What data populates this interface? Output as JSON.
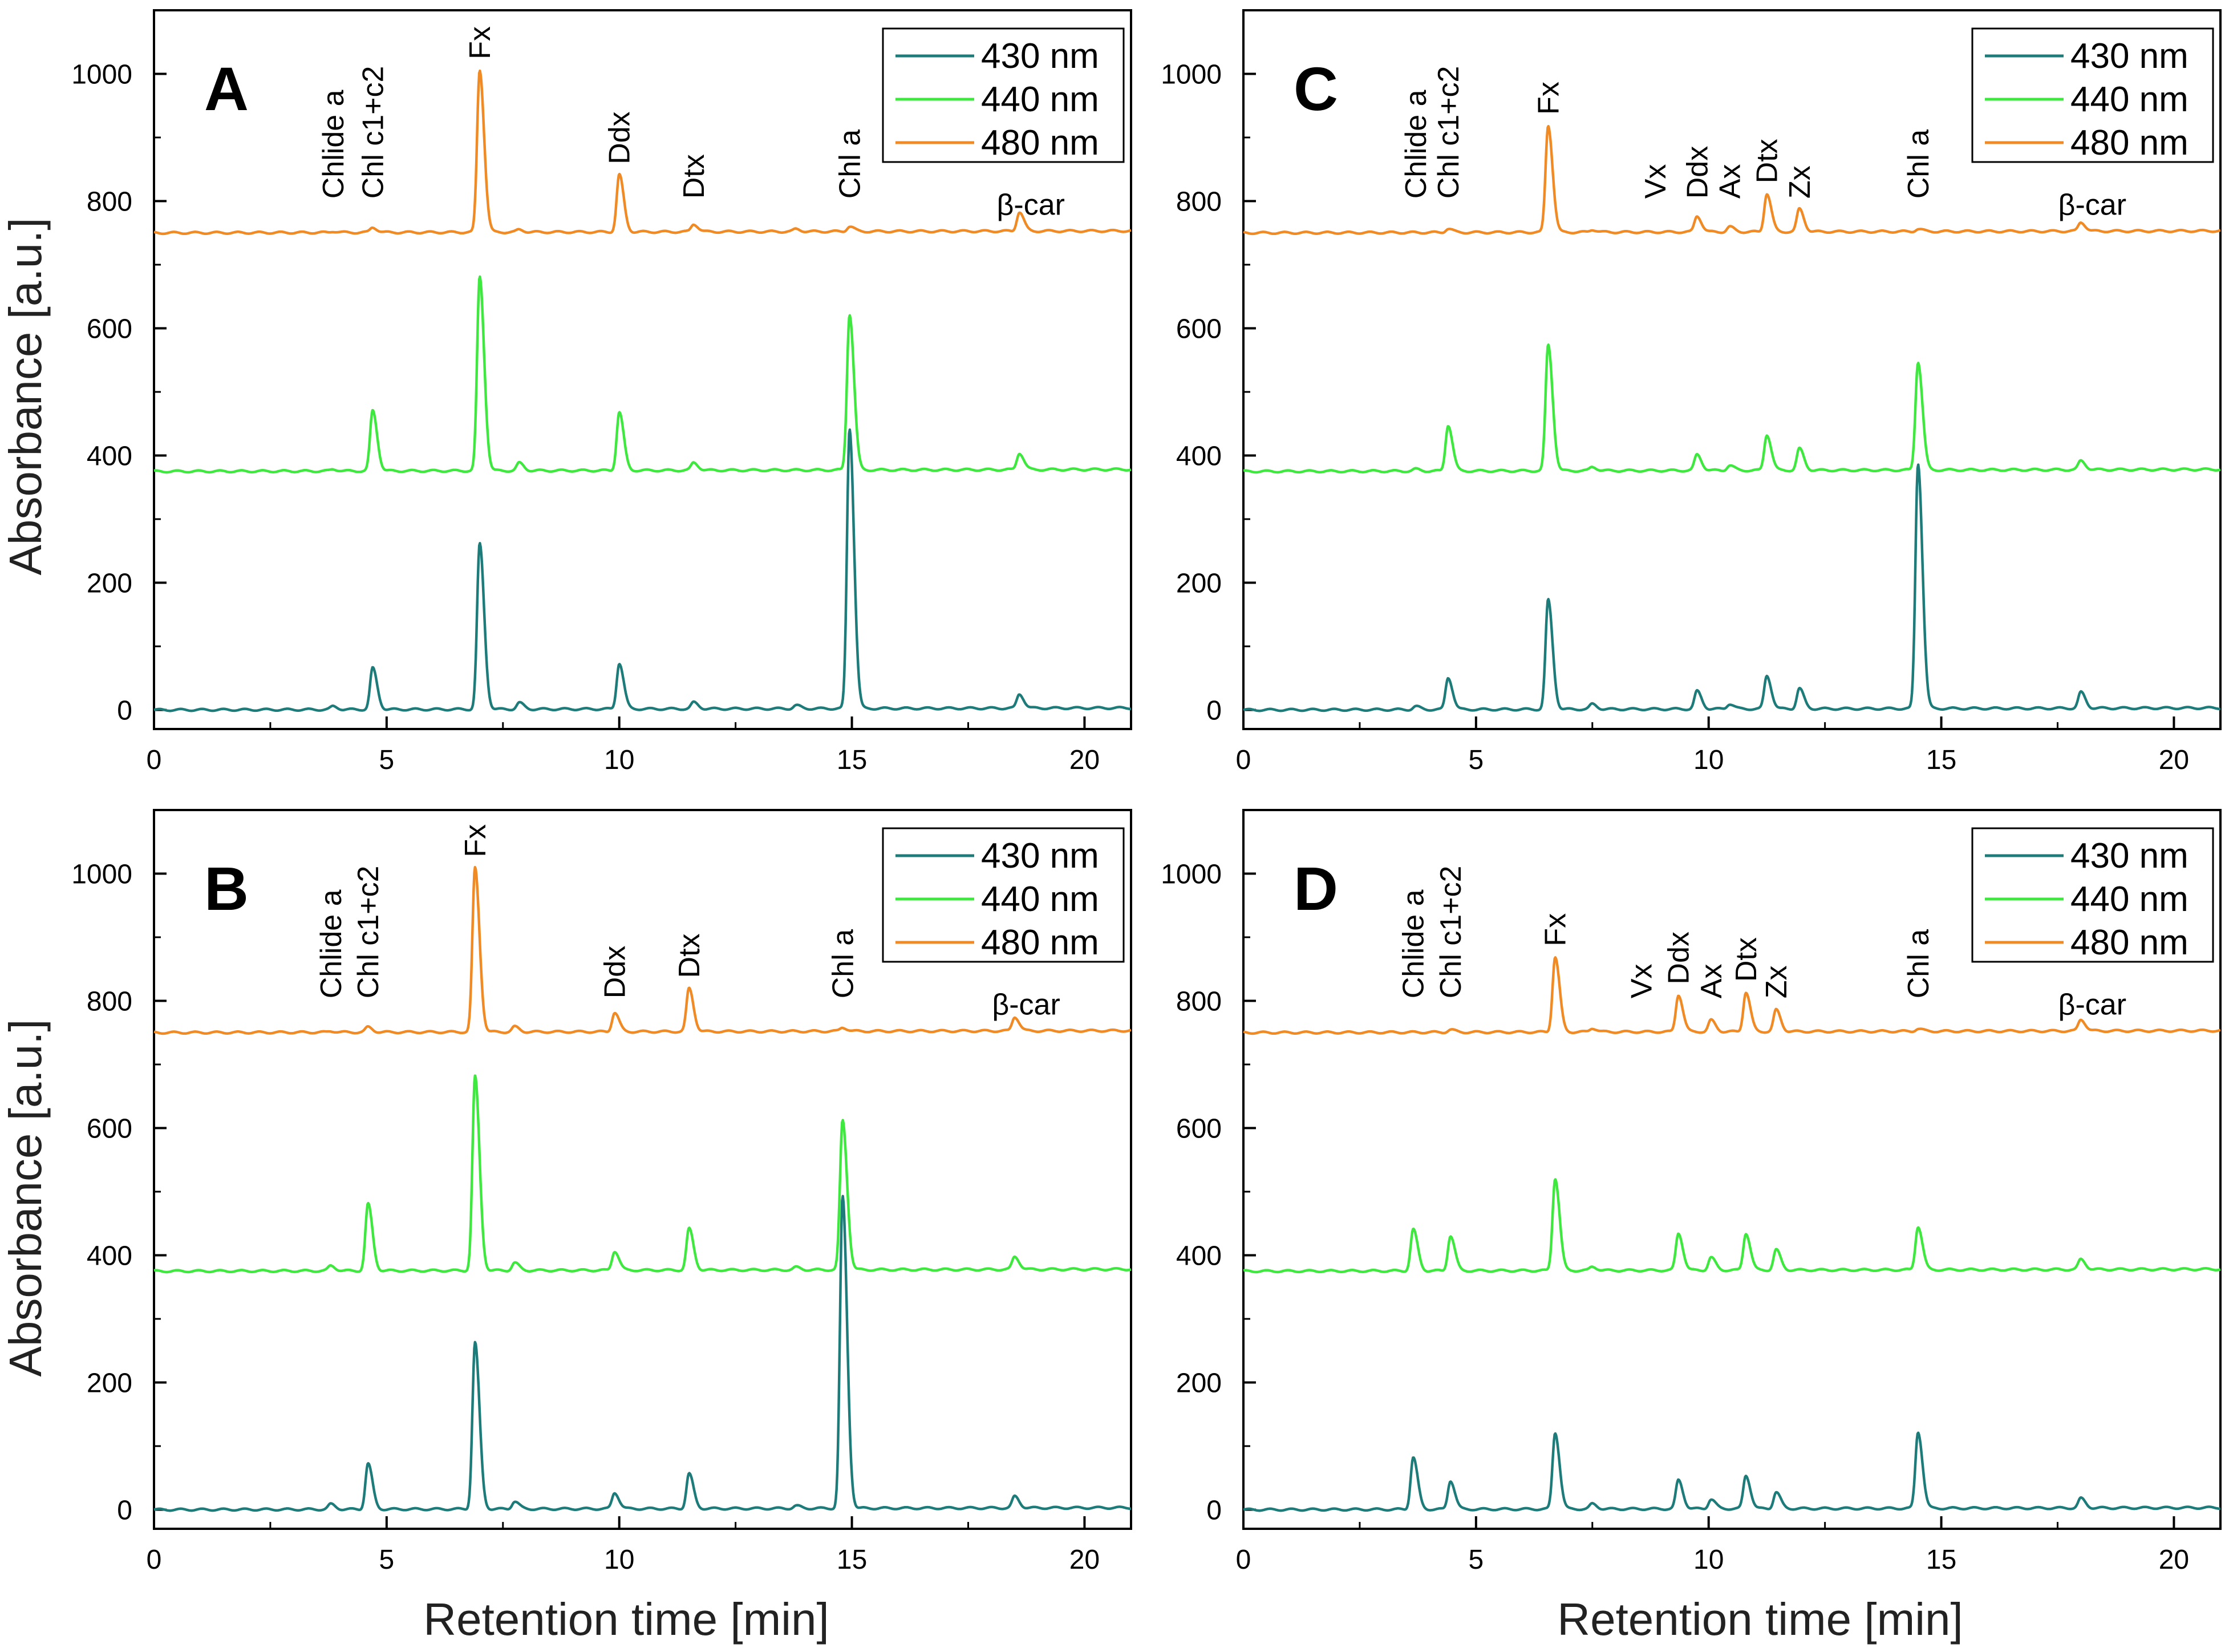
{
  "axis_titles": {
    "y_top": "Absorbance [a.u.]",
    "y_bottom": "Absorbance [a.u.]",
    "x_left": "Retention time [min]",
    "x_right": "Retention time [min]"
  },
  "colors": {
    "430 nm": "#1d7b7a",
    "440 nm": "#3fe83f",
    "480 nm": "#f08a24"
  },
  "chart_data": [
    {
      "panel": "A",
      "type": "line",
      "xlim": [
        0,
        21
      ],
      "ylim": [
        -30,
        1100
      ],
      "xticks": [
        0,
        5,
        10,
        15,
        20
      ],
      "yticks": [
        0,
        200,
        400,
        600,
        800,
        1000
      ],
      "xlabel": "",
      "ylabel": "Absorbance [a.u.]",
      "legend": [
        "430 nm",
        "440 nm",
        "480 nm"
      ],
      "legend_position": "top-right",
      "series": [
        {
          "name": "430 nm",
          "baseline": 0,
          "peaks": [
            [
              3.85,
              5
            ],
            [
              4.7,
              65
            ],
            [
              7.0,
              260
            ],
            [
              7.85,
              10
            ],
            [
              10.0,
              72
            ],
            [
              11.6,
              10
            ],
            [
              13.8,
              5
            ],
            [
              14.95,
              440
            ],
            [
              18.6,
              22
            ]
          ]
        },
        {
          "name": "440 nm",
          "baseline": 375,
          "peaks": [
            [
              3.85,
              3
            ],
            [
              4.7,
              95
            ],
            [
              7.0,
              305
            ],
            [
              7.85,
              12
            ],
            [
              10.0,
              92
            ],
            [
              11.6,
              12
            ],
            [
              14.95,
              245
            ],
            [
              18.6,
              26
            ]
          ]
        },
        {
          "name": "480 nm",
          "baseline": 750,
          "peaks": [
            [
              3.85,
              2
            ],
            [
              4.7,
              8
            ],
            [
              7.0,
              255
            ],
            [
              7.85,
              4
            ],
            [
              10.0,
              90
            ],
            [
              11.6,
              12
            ],
            [
              13.8,
              4
            ],
            [
              14.95,
              8
            ],
            [
              18.6,
              30
            ]
          ]
        }
      ],
      "annotations": [
        {
          "x": 3.85,
          "text": "Chlide a"
        },
        {
          "x": 4.7,
          "text": "Chl c1+c2"
        },
        {
          "x": 7.0,
          "text": "Fx"
        },
        {
          "x": 10.0,
          "text": "Ddx"
        },
        {
          "x": 11.6,
          "text": "Dtx"
        },
        {
          "x": 14.95,
          "text": "Chl a"
        },
        {
          "x": 18.6,
          "text": "β-car"
        }
      ]
    },
    {
      "panel": "B",
      "type": "line",
      "xlim": [
        0,
        21
      ],
      "ylim": [
        -30,
        1100
      ],
      "xticks": [
        0,
        5,
        10,
        15,
        20
      ],
      "yticks": [
        0,
        200,
        400,
        600,
        800,
        1000
      ],
      "xlabel": "Retention time [min]",
      "ylabel": "Absorbance [a.u.]",
      "legend": [
        "430 nm",
        "440 nm",
        "480 nm"
      ],
      "legend_position": "top-right",
      "series": [
        {
          "name": "430 nm",
          "baseline": 0,
          "peaks": [
            [
              3.8,
              8
            ],
            [
              4.6,
              72
            ],
            [
              6.9,
              262
            ],
            [
              7.75,
              12
            ],
            [
              9.9,
              25
            ],
            [
              11.5,
              55
            ],
            [
              13.8,
              4
            ],
            [
              14.8,
              490
            ],
            [
              18.5,
              18
            ]
          ]
        },
        {
          "name": "440 nm",
          "baseline": 375,
          "peaks": [
            [
              3.8,
              8
            ],
            [
              4.6,
              105
            ],
            [
              6.9,
              305
            ],
            [
              7.75,
              12
            ],
            [
              9.9,
              30
            ],
            [
              11.5,
              65
            ],
            [
              13.8,
              4
            ],
            [
              14.8,
              235
            ],
            [
              18.5,
              20
            ]
          ]
        },
        {
          "name": "480 nm",
          "baseline": 750,
          "peaks": [
            [
              3.8,
              2
            ],
            [
              4.6,
              8
            ],
            [
              6.9,
              258
            ],
            [
              7.75,
              8
            ],
            [
              9.9,
              30
            ],
            [
              11.5,
              68
            ],
            [
              14.8,
              6
            ],
            [
              18.5,
              22
            ]
          ]
        }
      ],
      "annotations": [
        {
          "x": 3.8,
          "text": "Chlide a"
        },
        {
          "x": 4.6,
          "text": "Chl c1+c2"
        },
        {
          "x": 6.9,
          "text": "Fx"
        },
        {
          "x": 9.9,
          "text": "Ddx"
        },
        {
          "x": 11.5,
          "text": "Dtx"
        },
        {
          "x": 14.8,
          "text": "Chl a"
        },
        {
          "x": 18.5,
          "text": "β-car"
        }
      ]
    },
    {
      "panel": "C",
      "type": "line",
      "xlim": [
        0,
        21
      ],
      "ylim": [
        -30,
        1100
      ],
      "xticks": [
        0,
        5,
        10,
        15,
        20
      ],
      "yticks": [
        0,
        200,
        400,
        600,
        800,
        1000
      ],
      "xlabel": "",
      "ylabel": "",
      "legend": [
        "430 nm",
        "440 nm",
        "480 nm"
      ],
      "legend_position": "top-right",
      "series": [
        {
          "name": "430 nm",
          "baseline": 0,
          "peaks": [
            [
              3.7,
              5
            ],
            [
              4.4,
              50
            ],
            [
              6.55,
              172
            ],
            [
              7.5,
              8
            ],
            [
              9.75,
              28
            ],
            [
              10.45,
              8
            ],
            [
              11.25,
              52
            ],
            [
              11.95,
              32
            ],
            [
              14.5,
              385
            ],
            [
              18.0,
              25
            ]
          ]
        },
        {
          "name": "440 nm",
          "baseline": 375,
          "peaks": [
            [
              3.7,
              3
            ],
            [
              4.4,
              72
            ],
            [
              6.55,
              198
            ],
            [
              7.5,
              6
            ],
            [
              9.75,
              25
            ],
            [
              10.45,
              8
            ],
            [
              11.25,
              56
            ],
            [
              11.95,
              34
            ],
            [
              14.5,
              170
            ],
            [
              18.0,
              14
            ]
          ]
        },
        {
          "name": "480 nm",
          "baseline": 750,
          "peaks": [
            [
              4.4,
              6
            ],
            [
              6.55,
              168
            ],
            [
              7.5,
              4
            ],
            [
              9.75,
              25
            ],
            [
              10.45,
              8
            ],
            [
              11.25,
              60
            ],
            [
              11.95,
              36
            ],
            [
              14.5,
              4
            ],
            [
              18.0,
              14
            ]
          ]
        }
      ],
      "annotations": [
        {
          "x": 3.7,
          "text": "Chlide a"
        },
        {
          "x": 4.4,
          "text": "Chl c1+c2"
        },
        {
          "x": 6.55,
          "text": "Fx"
        },
        {
          "x": 8.85,
          "text": "Vx"
        },
        {
          "x": 9.75,
          "text": "Ddx"
        },
        {
          "x": 10.45,
          "text": "Ax"
        },
        {
          "x": 11.25,
          "text": "Dtx"
        },
        {
          "x": 11.95,
          "text": "Zx"
        },
        {
          "x": 14.5,
          "text": "Chl a"
        },
        {
          "x": 18.0,
          "text": "β-car"
        }
      ]
    },
    {
      "panel": "D",
      "type": "line",
      "xlim": [
        0,
        21
      ],
      "ylim": [
        -30,
        1100
      ],
      "xticks": [
        0,
        5,
        10,
        15,
        20
      ],
      "yticks": [
        0,
        200,
        400,
        600,
        800,
        1000
      ],
      "xlabel": "Retention time [min]",
      "ylabel": "",
      "legend": [
        "430 nm",
        "440 nm",
        "480 nm"
      ],
      "legend_position": "top-right",
      "series": [
        {
          "name": "430 nm",
          "baseline": 0,
          "peaks": [
            [
              3.65,
              82
            ],
            [
              4.45,
              45
            ],
            [
              6.7,
              120
            ],
            [
              7.5,
              8
            ],
            [
              9.35,
              45
            ],
            [
              10.05,
              15
            ],
            [
              10.8,
              52
            ],
            [
              11.45,
              26
            ],
            [
              14.5,
              120
            ],
            [
              18.0,
              15
            ]
          ]
        },
        {
          "name": "440 nm",
          "baseline": 375,
          "peaks": [
            [
              3.65,
              65
            ],
            [
              4.45,
              55
            ],
            [
              6.7,
              145
            ],
            [
              7.5,
              6
            ],
            [
              9.35,
              58
            ],
            [
              10.05,
              20
            ],
            [
              10.8,
              58
            ],
            [
              11.45,
              32
            ],
            [
              14.5,
              68
            ],
            [
              18.0,
              16
            ]
          ]
        },
        {
          "name": "480 nm",
          "baseline": 750,
          "peaks": [
            [
              4.45,
              4
            ],
            [
              6.7,
              118
            ],
            [
              7.5,
              6
            ],
            [
              9.35,
              58
            ],
            [
              10.05,
              18
            ],
            [
              10.8,
              62
            ],
            [
              11.45,
              34
            ],
            [
              14.5,
              4
            ],
            [
              18.0,
              18
            ]
          ]
        }
      ],
      "annotations": [
        {
          "x": 3.65,
          "text": "Chlide a"
        },
        {
          "x": 4.45,
          "text": "Chl c1+c2"
        },
        {
          "x": 6.7,
          "text": "Fx"
        },
        {
          "x": 8.55,
          "text": "Vx"
        },
        {
          "x": 9.35,
          "text": "Ddx"
        },
        {
          "x": 10.05,
          "text": "Ax"
        },
        {
          "x": 10.8,
          "text": "Dtx"
        },
        {
          "x": 11.45,
          "text": "Zx"
        },
        {
          "x": 14.5,
          "text": "Chl a"
        },
        {
          "x": 18.0,
          "text": "β-car"
        }
      ]
    }
  ]
}
